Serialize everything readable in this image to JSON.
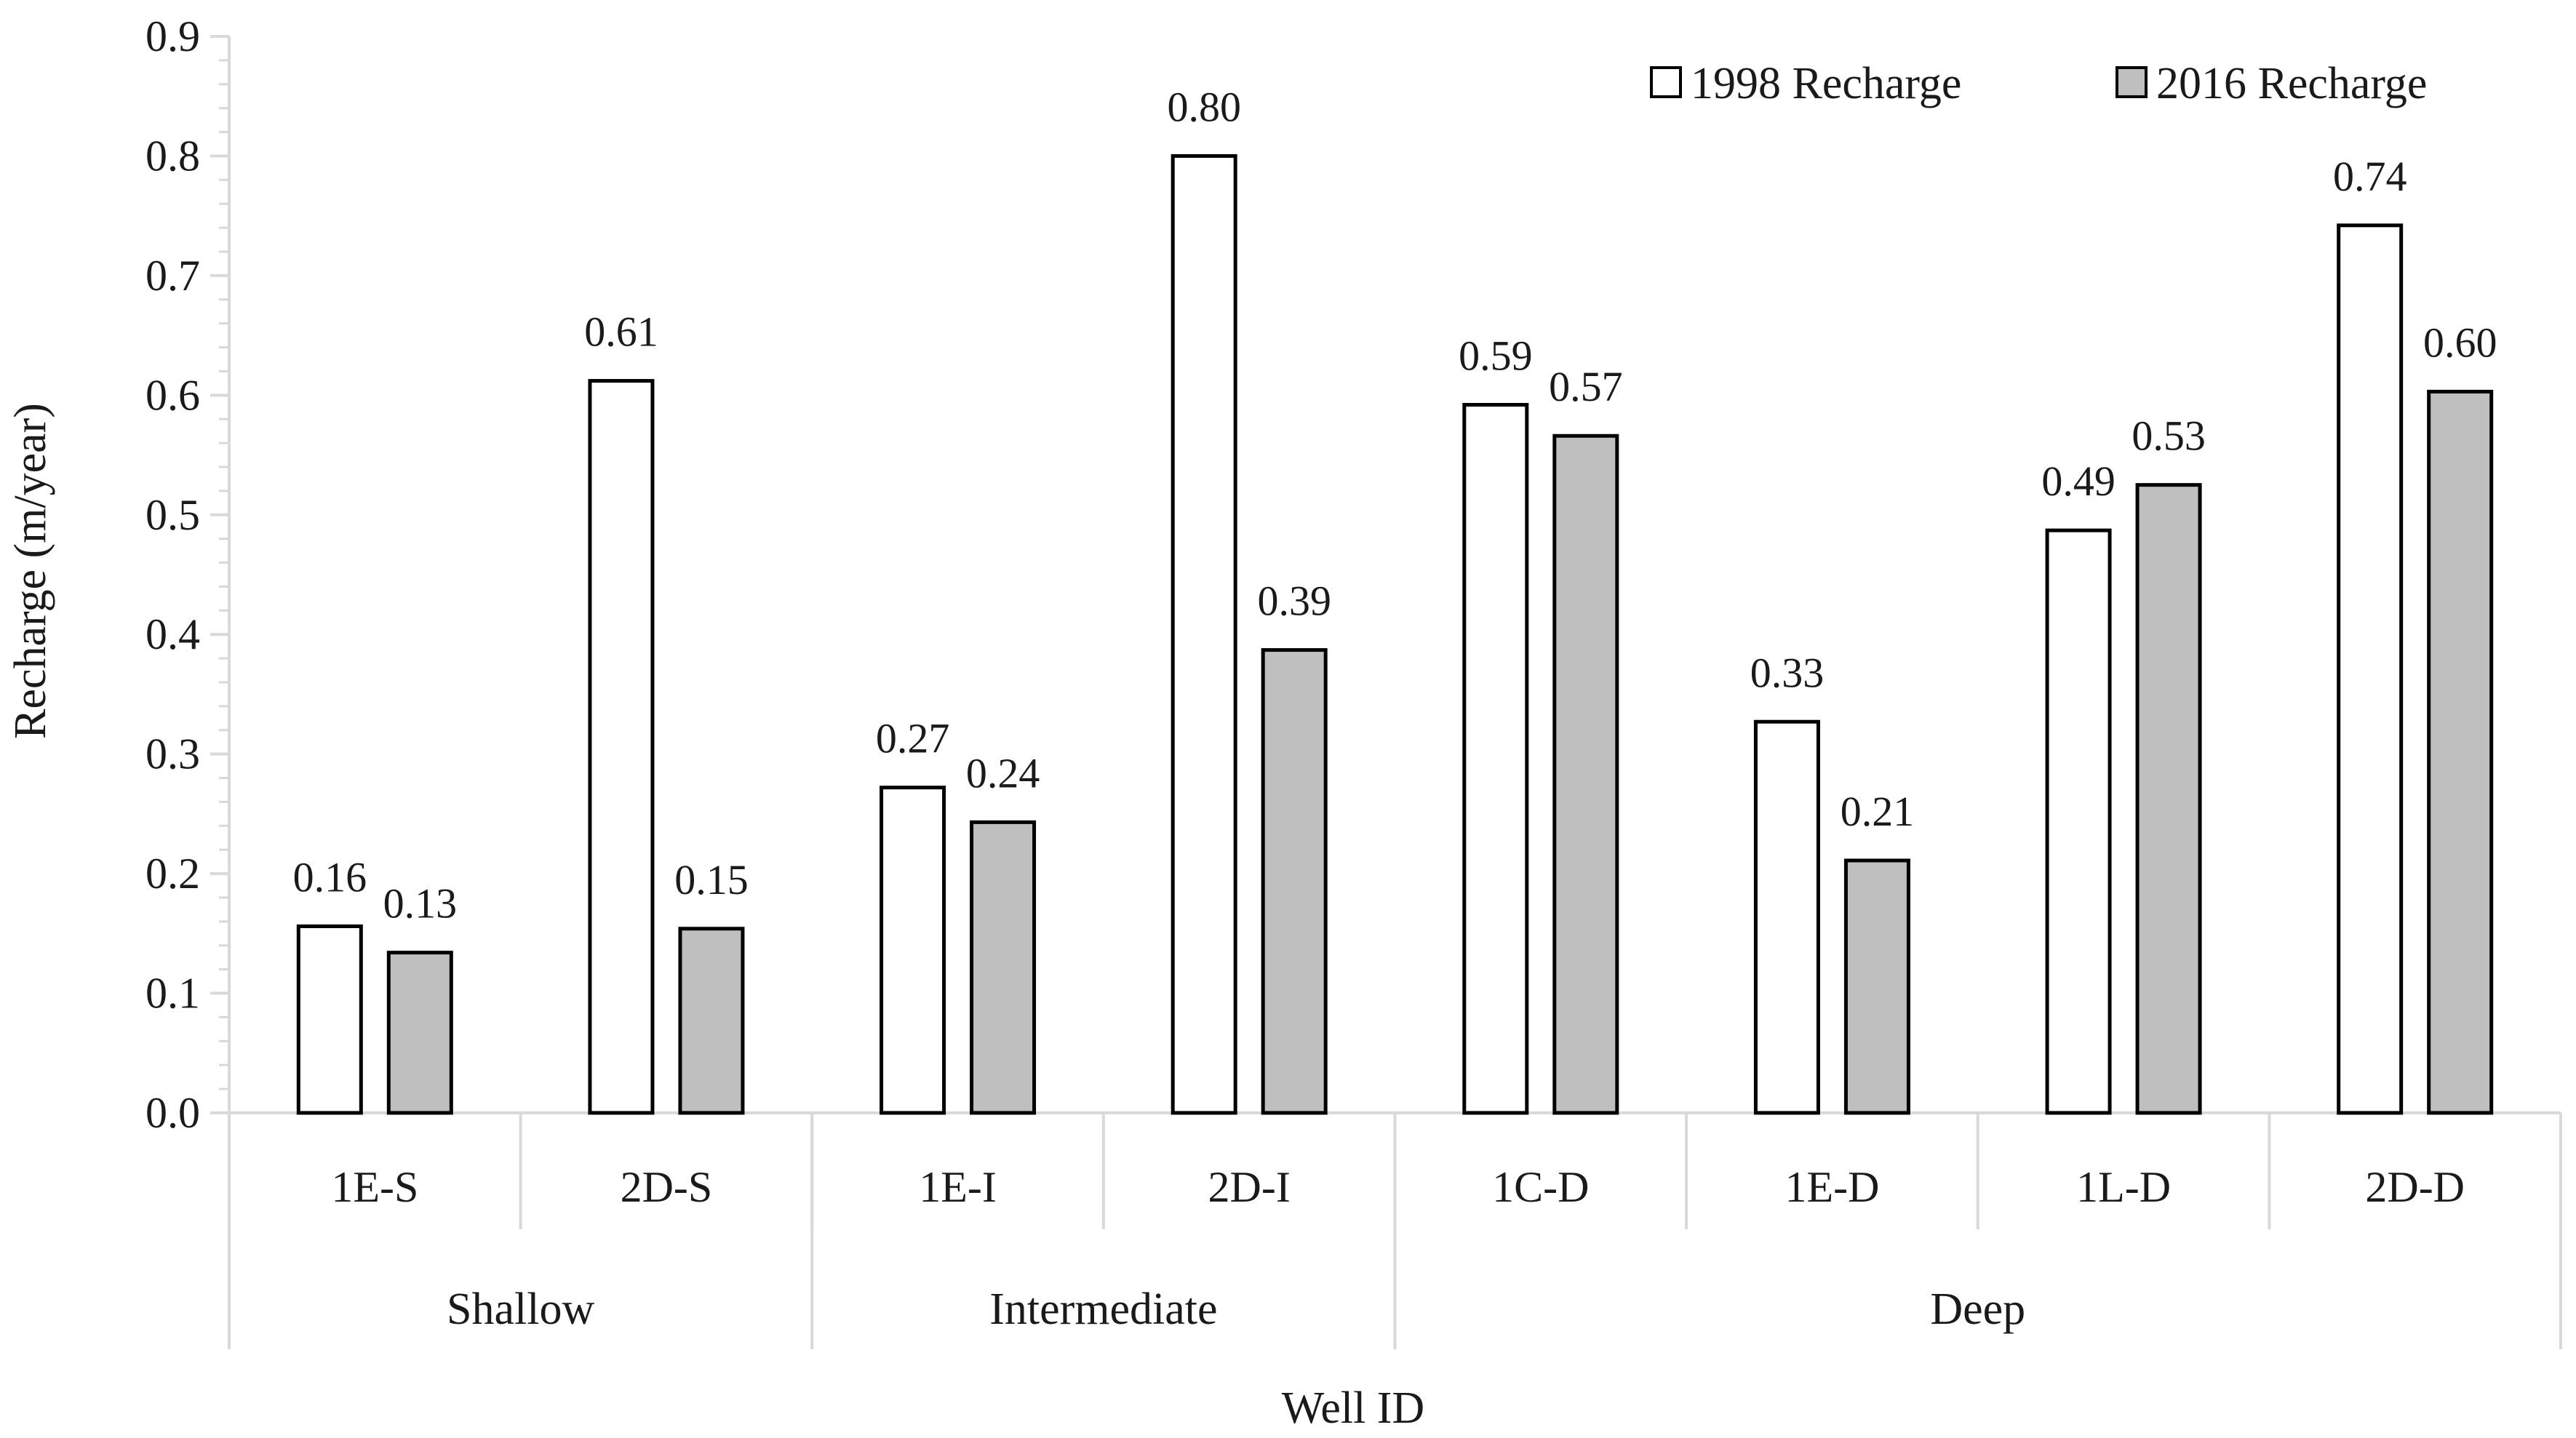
{
  "chart_data": {
    "type": "bar",
    "title": "",
    "xlabel": "Well ID",
    "ylabel": "Recharge (m/year)",
    "ylim": [
      0,
      0.9
    ],
    "yticks": [
      "0.0",
      "0.1",
      "0.2",
      "0.3",
      "0.4",
      "0.5",
      "0.6",
      "0.7",
      "0.8",
      "0.9"
    ],
    "y_tick_values": [
      0,
      0.1,
      0.2,
      0.3,
      0.4,
      0.5,
      0.6,
      0.7,
      0.8,
      0.9
    ],
    "minor_ticks_per_major": 5,
    "categories": [
      "1E-S",
      "2D-S",
      "1E-I",
      "2D-I",
      "1C-D",
      "1E-D",
      "1L-D",
      "2D-D"
    ],
    "groups": [
      {
        "label": "Shallow",
        "count": 2
      },
      {
        "label": "Intermediate",
        "count": 2
      },
      {
        "label": "Deep",
        "count": 4
      }
    ],
    "series": [
      {
        "name": "1998 Recharge",
        "color": "#ffffff",
        "values": [
          0.156,
          0.612,
          0.272,
          0.8,
          0.592,
          0.327,
          0.487,
          0.742
        ],
        "labels": [
          "0.16",
          "0.61",
          "0.27",
          "0.80",
          "0.59",
          "0.33",
          "0.49",
          "0.74"
        ]
      },
      {
        "name": "2016 Recharge",
        "color": "#bfbfbf",
        "values": [
          0.134,
          0.154,
          0.243,
          0.387,
          0.566,
          0.211,
          0.525,
          0.603
        ],
        "labels": [
          "0.13",
          "0.15",
          "0.24",
          "0.39",
          "0.57",
          "0.21",
          "0.53",
          "0.60"
        ]
      }
    ],
    "legend": "top-right",
    "grid": false
  }
}
